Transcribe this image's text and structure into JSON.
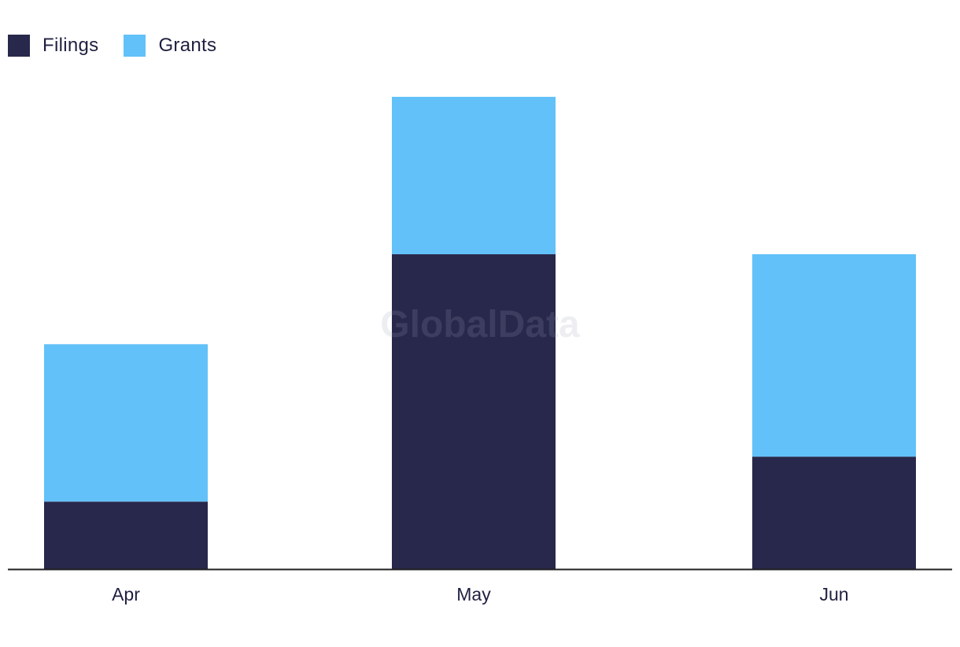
{
  "legend": {
    "filings_label": "Filings",
    "grants_label": "Grants"
  },
  "watermark": "GlobalData",
  "colors": {
    "filings": "#28284c",
    "grants": "#62c1f8",
    "axis": "#1f1f1f",
    "text": "#1f2040"
  },
  "chart_data": {
    "type": "bar",
    "stacked": true,
    "categories": [
      "Apr",
      "May",
      "Jun"
    ],
    "series": [
      {
        "name": "Filings",
        "values": [
          3,
          14,
          5
        ]
      },
      {
        "name": "Grants",
        "values": [
          7,
          7,
          9
        ]
      }
    ],
    "title": "",
    "xlabel": "",
    "ylabel": "",
    "ylim": [
      0,
      21
    ],
    "grid": false,
    "legend_position": "top-left"
  }
}
